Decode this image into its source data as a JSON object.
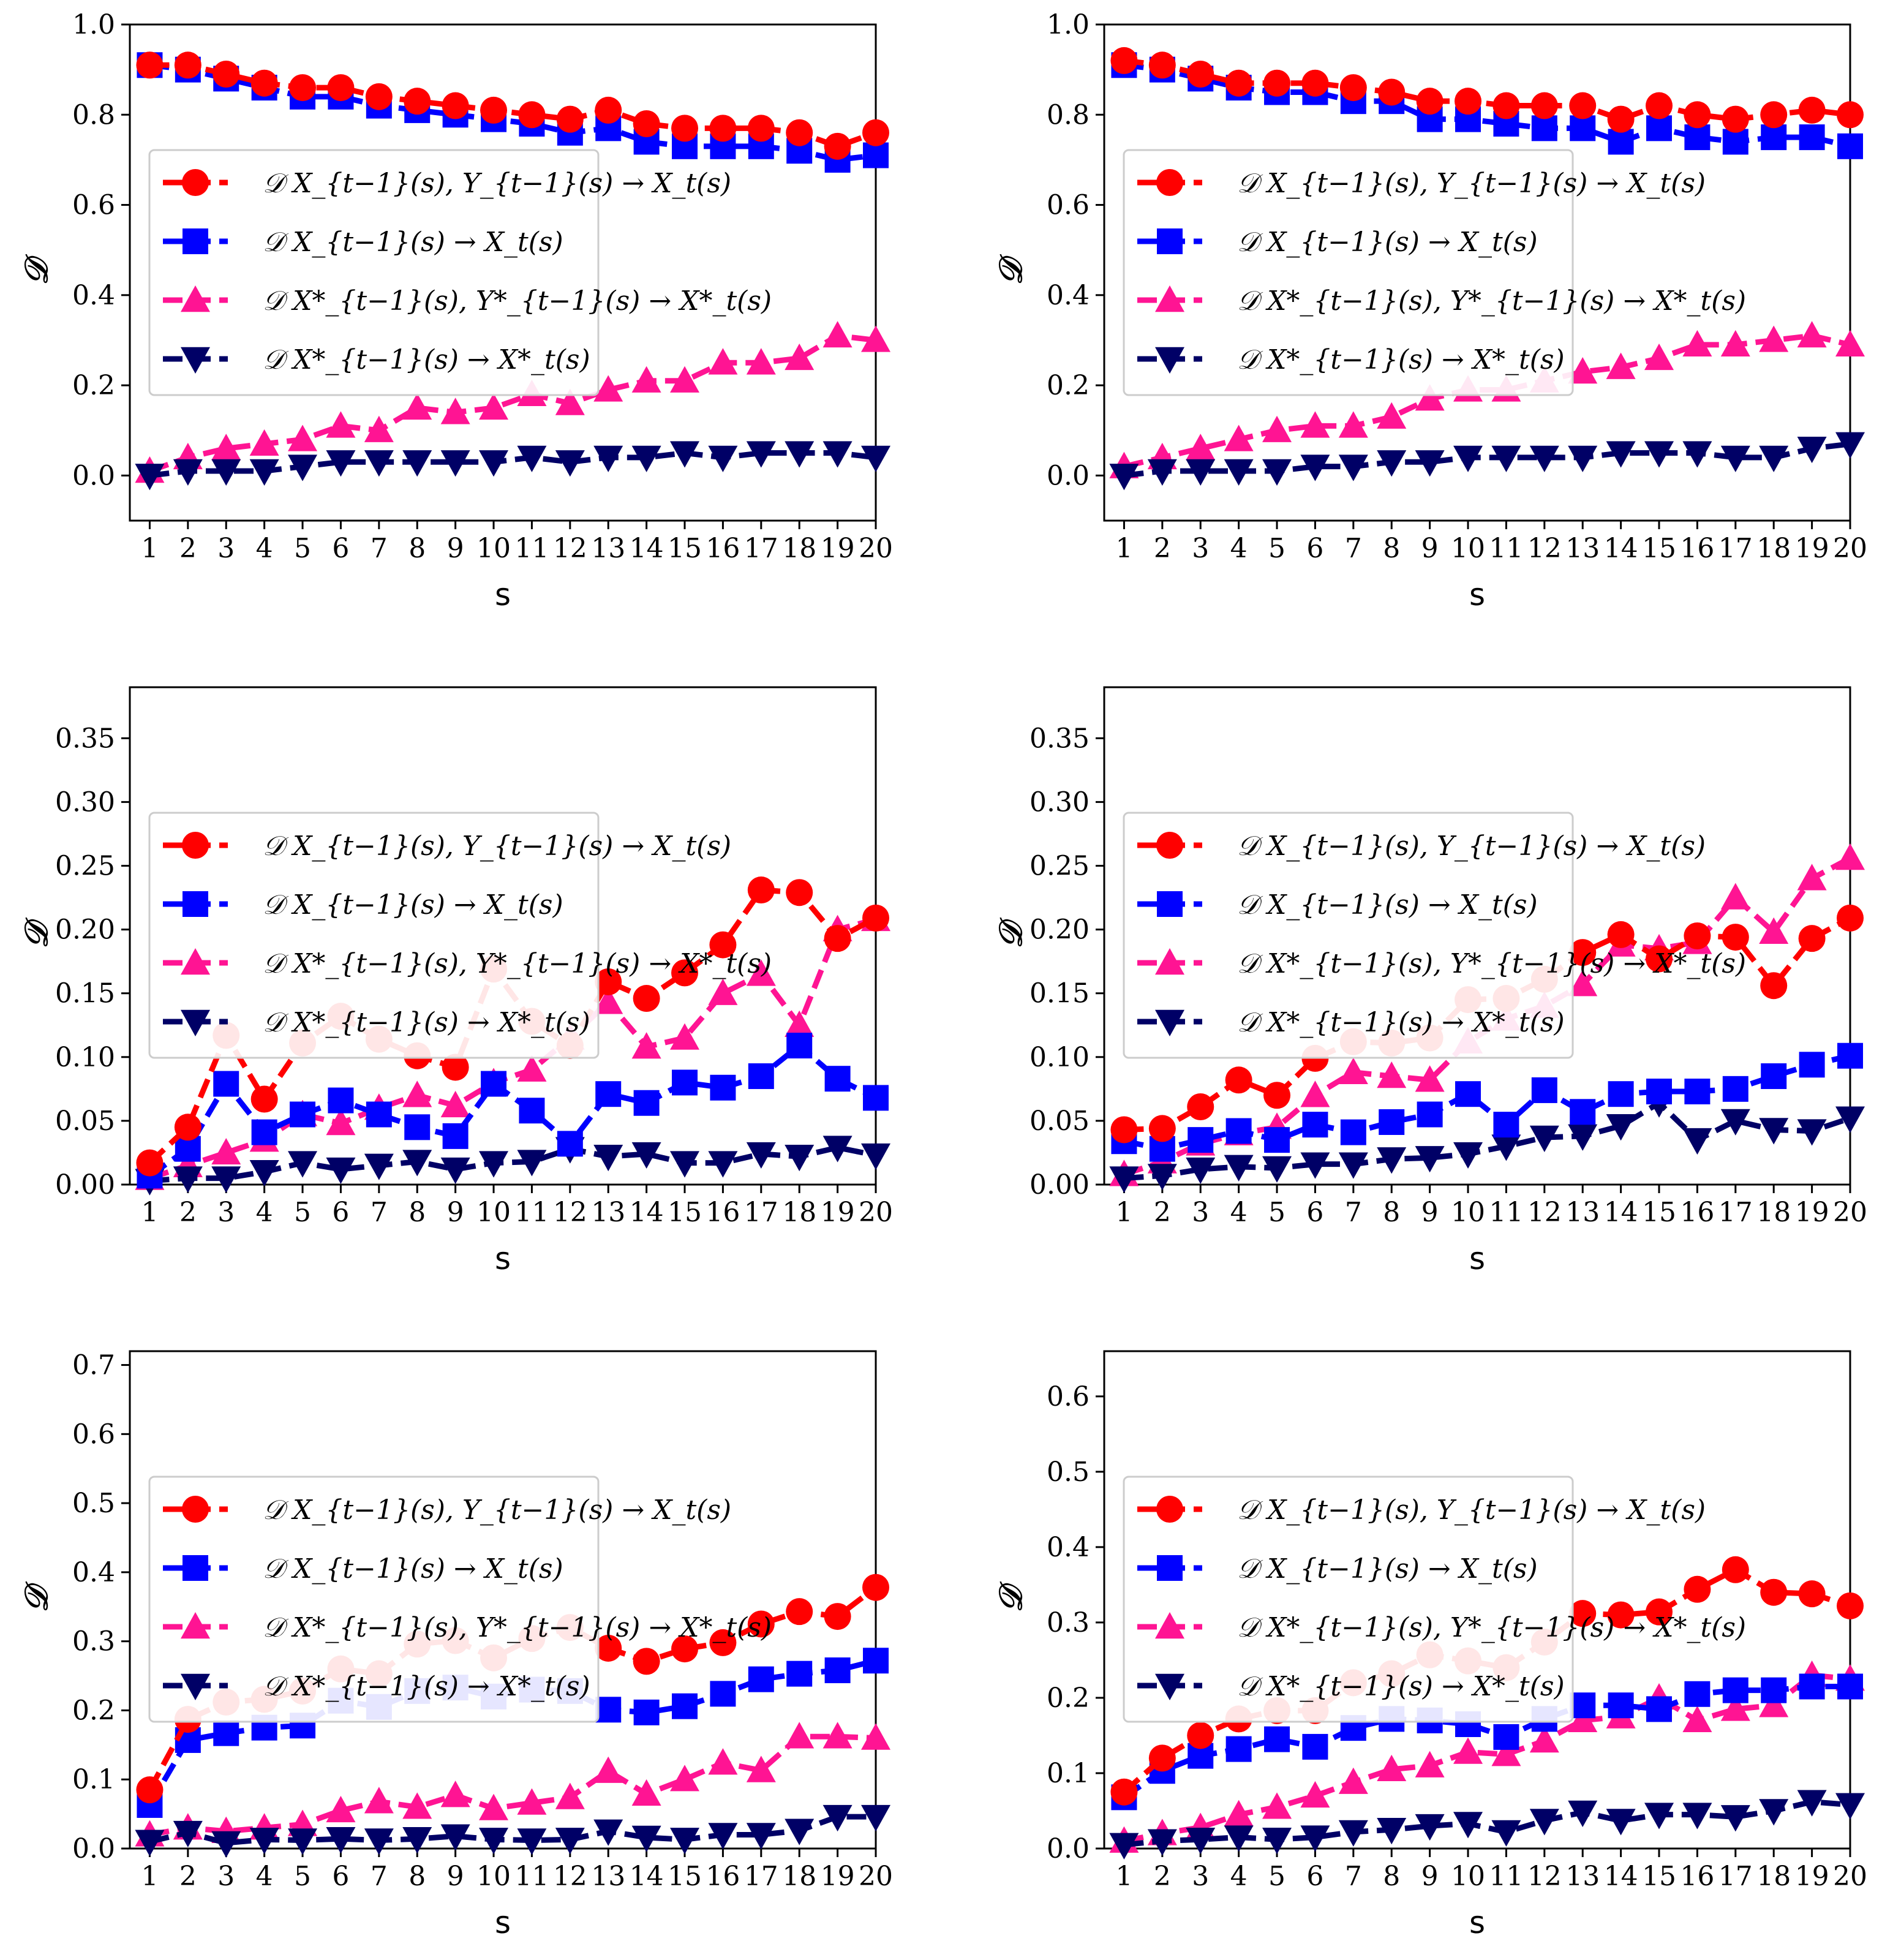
{
  "legend": [
    {
      "label": "𝒟 X_{t−1}(s), Y_{t−1}(s) → X_t(s)",
      "color": "#ff0000",
      "marker": "circle"
    },
    {
      "label": "𝒟 X_{t−1}(s) → X_t(s)",
      "color": "#0000ff",
      "marker": "square"
    },
    {
      "label": "𝒟 X*_{t−1}(s), Y*_{t−1}(s) → X*_t(s)",
      "color": "#ff1493",
      "marker": "triangle-up"
    },
    {
      "label": "𝒟 X*_{t−1}(s) → X*_t(s)",
      "color": "#000066",
      "marker": "triangle-down"
    }
  ],
  "chart_data": [
    {
      "type": "line",
      "xlabel": "s",
      "ylabel": "𝒟",
      "x": [
        1,
        2,
        3,
        4,
        5,
        6,
        7,
        8,
        9,
        10,
        11,
        12,
        13,
        14,
        15,
        16,
        17,
        18,
        19,
        20
      ],
      "ylim": [
        -0.1,
        1.0
      ],
      "yticks": [
        0.0,
        0.2,
        0.4,
        0.6,
        0.8,
        1.0
      ],
      "ytick_labels": [
        "0.0",
        "0.2",
        "0.4",
        "0.6",
        "0.8",
        "1.0"
      ],
      "series": [
        {
          "name": "XY->X",
          "values": [
            0.91,
            0.91,
            0.89,
            0.87,
            0.86,
            0.86,
            0.84,
            0.83,
            0.82,
            0.81,
            0.8,
            0.79,
            0.81,
            0.78,
            0.77,
            0.77,
            0.77,
            0.76,
            0.73,
            0.76
          ]
        },
        {
          "name": "X->X",
          "values": [
            0.91,
            0.9,
            0.88,
            0.86,
            0.84,
            0.84,
            0.82,
            0.81,
            0.8,
            0.79,
            0.78,
            0.76,
            0.77,
            0.74,
            0.73,
            0.73,
            0.73,
            0.72,
            0.7,
            0.71
          ]
        },
        {
          "name": "X*Y*->X*",
          "values": [
            0.01,
            0.04,
            0.06,
            0.07,
            0.08,
            0.11,
            0.1,
            0.15,
            0.14,
            0.15,
            0.18,
            0.16,
            0.19,
            0.21,
            0.21,
            0.25,
            0.25,
            0.26,
            0.31,
            0.3
          ]
        },
        {
          "name": "X*->X*",
          "values": [
            0.0,
            0.01,
            0.01,
            0.01,
            0.02,
            0.03,
            0.03,
            0.03,
            0.03,
            0.03,
            0.04,
            0.03,
            0.04,
            0.04,
            0.05,
            0.04,
            0.05,
            0.05,
            0.05,
            0.04
          ]
        }
      ]
    },
    {
      "type": "line",
      "xlabel": "s",
      "ylabel": "𝒟",
      "x": [
        1,
        2,
        3,
        4,
        5,
        6,
        7,
        8,
        9,
        10,
        11,
        12,
        13,
        14,
        15,
        16,
        17,
        18,
        19,
        20
      ],
      "ylim": [
        -0.1,
        1.0
      ],
      "yticks": [
        0.0,
        0.2,
        0.4,
        0.6,
        0.8,
        1.0
      ],
      "ytick_labels": [
        "0.0",
        "0.2",
        "0.4",
        "0.6",
        "0.8",
        "1.0"
      ],
      "series": [
        {
          "name": "XY->X",
          "values": [
            0.92,
            0.91,
            0.89,
            0.87,
            0.87,
            0.87,
            0.86,
            0.85,
            0.83,
            0.83,
            0.82,
            0.82,
            0.82,
            0.79,
            0.82,
            0.8,
            0.79,
            0.8,
            0.81,
            0.8
          ]
        },
        {
          "name": "X->X",
          "values": [
            0.91,
            0.9,
            0.88,
            0.86,
            0.85,
            0.85,
            0.83,
            0.83,
            0.79,
            0.79,
            0.78,
            0.77,
            0.77,
            0.74,
            0.77,
            0.75,
            0.74,
            0.75,
            0.75,
            0.73
          ]
        },
        {
          "name": "X*Y*->X*",
          "values": [
            0.02,
            0.04,
            0.06,
            0.08,
            0.1,
            0.11,
            0.11,
            0.13,
            0.17,
            0.19,
            0.19,
            0.21,
            0.23,
            0.24,
            0.26,
            0.29,
            0.29,
            0.3,
            0.31,
            0.29
          ]
        },
        {
          "name": "X*->X*",
          "values": [
            0.0,
            0.01,
            0.01,
            0.01,
            0.01,
            0.02,
            0.02,
            0.03,
            0.03,
            0.04,
            0.04,
            0.04,
            0.04,
            0.05,
            0.05,
            0.05,
            0.04,
            0.04,
            0.06,
            0.07
          ]
        }
      ]
    },
    {
      "type": "line",
      "xlabel": "s",
      "ylabel": "𝒟",
      "x": [
        1,
        2,
        3,
        4,
        5,
        6,
        7,
        8,
        9,
        10,
        11,
        12,
        13,
        14,
        15,
        16,
        17,
        18,
        19,
        20
      ],
      "ylim": [
        0.0,
        0.39
      ],
      "yticks": [
        0.0,
        0.05,
        0.1,
        0.15,
        0.2,
        0.25,
        0.3,
        0.35
      ],
      "ytick_labels": [
        "0.00",
        "0.05",
        "0.10",
        "0.15",
        "0.20",
        "0.25",
        "0.30",
        "0.35"
      ],
      "series": [
        {
          "name": "XY->X",
          "values": [
            0.017,
            0.045,
            0.117,
            0.067,
            0.111,
            0.132,
            0.114,
            0.101,
            0.092,
            0.169,
            0.128,
            0.109,
            0.159,
            0.146,
            0.166,
            0.188,
            0.231,
            0.229,
            0.193,
            0.209
          ]
        },
        {
          "name": "X->X",
          "values": [
            0.007,
            0.028,
            0.079,
            0.041,
            0.055,
            0.066,
            0.055,
            0.045,
            0.038,
            0.079,
            0.058,
            0.032,
            0.071,
            0.064,
            0.08,
            0.076,
            0.085,
            0.109,
            0.083,
            0.068
          ]
        },
        {
          "name": "X*Y*->X*",
          "values": [
            0.005,
            0.015,
            0.025,
            0.035,
            0.055,
            0.048,
            0.06,
            0.07,
            0.062,
            0.08,
            0.09,
            0.115,
            0.143,
            0.108,
            0.115,
            0.15,
            0.165,
            0.125,
            0.2,
            0.208
          ]
        },
        {
          "name": "X*->X*",
          "values": [
            0.003,
            0.005,
            0.005,
            0.01,
            0.017,
            0.012,
            0.015,
            0.018,
            0.012,
            0.017,
            0.018,
            0.028,
            0.022,
            0.024,
            0.017,
            0.017,
            0.024,
            0.022,
            0.029,
            0.023
          ]
        }
      ]
    },
    {
      "type": "line",
      "xlabel": "s",
      "ylabel": "𝒟",
      "x": [
        1,
        2,
        3,
        4,
        5,
        6,
        7,
        8,
        9,
        10,
        11,
        12,
        13,
        14,
        15,
        16,
        17,
        18,
        19,
        20
      ],
      "ylim": [
        0.0,
        0.39
      ],
      "yticks": [
        0.0,
        0.05,
        0.1,
        0.15,
        0.2,
        0.25,
        0.3,
        0.35
      ],
      "ytick_labels": [
        "0.00",
        "0.05",
        "0.10",
        "0.15",
        "0.20",
        "0.25",
        "0.30",
        "0.35"
      ],
      "series": [
        {
          "name": "XY->X",
          "values": [
            0.043,
            0.044,
            0.061,
            0.082,
            0.07,
            0.099,
            0.112,
            0.111,
            0.115,
            0.145,
            0.146,
            0.161,
            0.182,
            0.196,
            0.177,
            0.195,
            0.194,
            0.156,
            0.193,
            0.209
          ]
        },
        {
          "name": "X->X",
          "values": [
            0.034,
            0.028,
            0.035,
            0.042,
            0.035,
            0.047,
            0.041,
            0.049,
            0.055,
            0.071,
            0.047,
            0.074,
            0.057,
            0.071,
            0.073,
            0.073,
            0.075,
            0.085,
            0.094,
            0.101
          ]
        },
        {
          "name": "X*Y*->X*",
          "values": [
            0.008,
            0.018,
            0.032,
            0.04,
            0.045,
            0.07,
            0.088,
            0.085,
            0.082,
            0.112,
            0.13,
            0.14,
            0.157,
            0.188,
            0.185,
            0.19,
            0.225,
            0.198,
            0.24,
            0.256
          ]
        },
        {
          "name": "X*->X*",
          "values": [
            0.005,
            0.007,
            0.012,
            0.014,
            0.013,
            0.016,
            0.016,
            0.02,
            0.021,
            0.024,
            0.03,
            0.037,
            0.038,
            0.046,
            0.064,
            0.035,
            0.05,
            0.043,
            0.042,
            0.052
          ]
        }
      ]
    },
    {
      "type": "line",
      "xlabel": "s",
      "ylabel": "𝒟",
      "x": [
        1,
        2,
        3,
        4,
        5,
        6,
        7,
        8,
        9,
        10,
        11,
        12,
        13,
        14,
        15,
        16,
        17,
        18,
        19,
        20
      ],
      "ylim": [
        0.0,
        0.72
      ],
      "yticks": [
        0.0,
        0.1,
        0.2,
        0.3,
        0.4,
        0.5,
        0.6,
        0.7
      ],
      "ytick_labels": [
        "0.0",
        "0.1",
        "0.2",
        "0.3",
        "0.4",
        "0.5",
        "0.6",
        "0.7"
      ],
      "series": [
        {
          "name": "XY->X",
          "values": [
            0.085,
            0.187,
            0.212,
            0.216,
            0.228,
            0.26,
            0.253,
            0.296,
            0.301,
            0.276,
            0.304,
            0.32,
            0.29,
            0.271,
            0.289,
            0.298,
            0.325,
            0.343,
            0.336,
            0.378
          ]
        },
        {
          "name": "X->X",
          "values": [
            0.063,
            0.157,
            0.167,
            0.175,
            0.178,
            0.214,
            0.205,
            0.228,
            0.233,
            0.22,
            0.23,
            0.228,
            0.201,
            0.197,
            0.206,
            0.224,
            0.245,
            0.253,
            0.258,
            0.272
          ]
        },
        {
          "name": "X*Y*->X*",
          "values": [
            0.02,
            0.03,
            0.025,
            0.03,
            0.035,
            0.055,
            0.068,
            0.06,
            0.077,
            0.058,
            0.066,
            0.074,
            0.112,
            0.079,
            0.1,
            0.124,
            0.113,
            0.162,
            0.162,
            0.16
          ]
        },
        {
          "name": "X*->X*",
          "values": [
            0.01,
            0.023,
            0.008,
            0.013,
            0.012,
            0.014,
            0.012,
            0.014,
            0.018,
            0.013,
            0.012,
            0.013,
            0.025,
            0.016,
            0.013,
            0.02,
            0.02,
            0.026,
            0.046,
            0.046
          ]
        }
      ]
    },
    {
      "type": "line",
      "xlabel": "s",
      "ylabel": "𝒟",
      "x": [
        1,
        2,
        3,
        4,
        5,
        6,
        7,
        8,
        9,
        10,
        11,
        12,
        13,
        14,
        15,
        16,
        17,
        18,
        19,
        20
      ],
      "ylim": [
        0.0,
        0.66
      ],
      "yticks": [
        0.0,
        0.1,
        0.2,
        0.3,
        0.4,
        0.5,
        0.6
      ],
      "ytick_labels": [
        "0.0",
        "0.1",
        "0.2",
        "0.3",
        "0.4",
        "0.5",
        "0.6"
      ],
      "series": [
        {
          "name": "XY->X",
          "values": [
            0.075,
            0.12,
            0.15,
            0.172,
            0.183,
            0.183,
            0.22,
            0.232,
            0.257,
            0.249,
            0.24,
            0.274,
            0.312,
            0.31,
            0.314,
            0.344,
            0.37,
            0.34,
            0.338,
            0.322
          ]
        },
        {
          "name": "X->X",
          "values": [
            0.068,
            0.103,
            0.123,
            0.132,
            0.145,
            0.135,
            0.16,
            0.172,
            0.17,
            0.165,
            0.148,
            0.172,
            0.19,
            0.19,
            0.185,
            0.205,
            0.21,
            0.21,
            0.215,
            0.215
          ]
        },
        {
          "name": "X*Y*->X*",
          "values": [
            0.01,
            0.02,
            0.028,
            0.045,
            0.055,
            0.07,
            0.088,
            0.105,
            0.11,
            0.128,
            0.125,
            0.143,
            0.17,
            0.175,
            0.2,
            0.17,
            0.185,
            0.19,
            0.23,
            0.225
          ]
        },
        {
          "name": "X*->X*",
          "values": [
            0.005,
            0.01,
            0.012,
            0.015,
            0.012,
            0.015,
            0.022,
            0.025,
            0.03,
            0.033,
            0.022,
            0.037,
            0.048,
            0.037,
            0.045,
            0.045,
            0.042,
            0.05,
            0.062,
            0.058
          ]
        }
      ]
    }
  ]
}
